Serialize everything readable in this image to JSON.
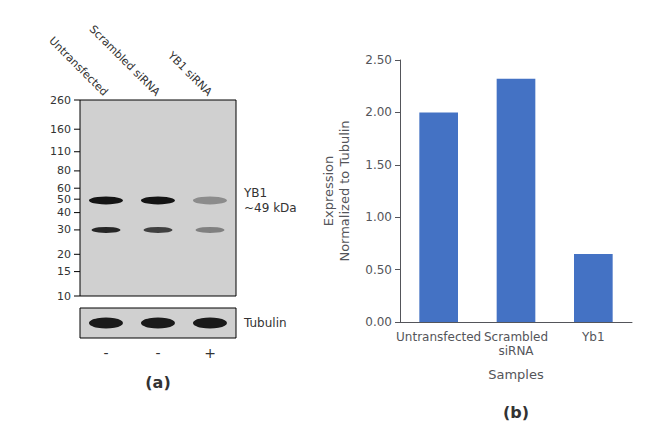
{
  "chart_data": [
    {
      "type": "blot",
      "title": "(a)",
      "categories": [
        "Untransfected",
        "Scrambled siRNA",
        "YB1 siRNA"
      ],
      "ylim": [
        10,
        260
      ],
      "yticks": [
        260,
        160,
        110,
        80,
        60,
        50,
        40,
        30,
        20,
        15,
        10
      ],
      "log": "y",
      "series": [
        {
          "name": "YB1",
          "annotation": "~49 kDa",
          "values": [
            49,
            49,
            49
          ],
          "colors": [
            "#141414",
            "#141414",
            "#8c8c8c"
          ]
        },
        {
          "values": [
            30,
            30,
            30
          ],
          "colors": [
            "#262626",
            "#404040",
            "#808080"
          ]
        }
      ]
    },
    {
      "type": "blot",
      "categories": [
        "-",
        "-",
        "+"
      ],
      "series": [
        {
          "name": "Tubulin",
          "colors": [
            "#1a1a1a",
            "#1a1a1a",
            "#1a1a1a"
          ]
        }
      ]
    },
    {
      "type": "bar",
      "title": "(b)",
      "categories": [
        "Untransfected",
        "Scrambled\nsiRNA",
        "Yb1"
      ],
      "values": [
        2.0,
        2.32,
        0.65
      ],
      "color": "#4472C4",
      "xlabel": "Samples",
      "ylabel": "Expression\nNormalized to Tubulin",
      "ylim": [
        0,
        2.5
      ],
      "yticks": [
        {
          "value": 0,
          "label": "0.00"
        },
        {
          "value": 0.5,
          "label": "0.50"
        },
        {
          "value": 1,
          "label": "1.00"
        },
        {
          "value": 1.5,
          "label": "1.50"
        },
        {
          "value": 2,
          "label": "2.00"
        },
        {
          "value": 2.5,
          "label": "2.50"
        }
      ],
      "grid": false
    }
  ]
}
